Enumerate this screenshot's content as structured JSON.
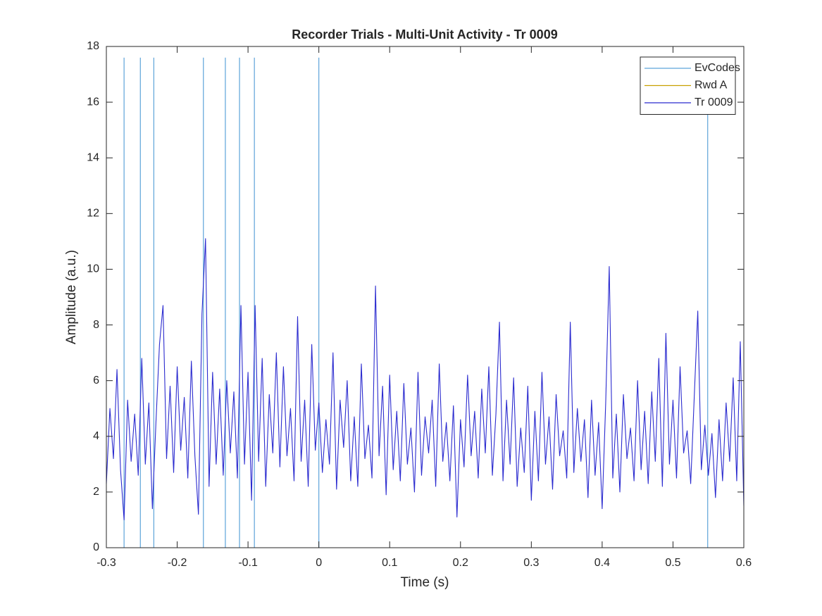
{
  "chart_data": {
    "type": "line",
    "title": "Recorder Trials - Multi-Unit Activity - Tr 0009",
    "x_label": "Time (s)",
    "y_label": "Amplitude (a.u.)",
    "xlim": [
      -0.3,
      0.6
    ],
    "ylim": [
      0,
      18
    ],
    "xticks": [
      -0.3,
      -0.2,
      -0.1,
      0,
      0.1,
      0.2,
      0.3,
      0.4,
      0.5,
      0.6
    ],
    "yticks": [
      0,
      2,
      4,
      6,
      8,
      10,
      12,
      14,
      16,
      18
    ],
    "legend": "northeast",
    "series": [
      {
        "name": "EvCodes",
        "color": "#5da3d9",
        "marker": "vline",
        "x": [
          -0.275,
          -0.252,
          -0.233,
          -0.163,
          -0.132,
          -0.112,
          -0.091,
          0,
          0.549
        ],
        "values": [
          17.6,
          17.6,
          17.6,
          17.6,
          17.6,
          17.6,
          17.6,
          17.6,
          17.6
        ]
      },
      {
        "name": "Rwd A",
        "color": "#c9a000",
        "x": [],
        "values": []
      },
      {
        "name": "Tr 0009",
        "color": "#2b2bcf",
        "x": [
          -0.3,
          -0.295,
          -0.29,
          -0.285,
          -0.28,
          -0.275,
          -0.27,
          -0.265,
          -0.26,
          -0.255,
          -0.25,
          -0.245,
          -0.24,
          -0.235,
          -0.23,
          -0.225,
          -0.22,
          -0.215,
          -0.21,
          -0.205,
          -0.2,
          -0.195,
          -0.19,
          -0.185,
          -0.18,
          -0.175,
          -0.17,
          -0.165,
          -0.16,
          -0.155,
          -0.15,
          -0.145,
          -0.14,
          -0.135,
          -0.13,
          -0.125,
          -0.12,
          -0.115,
          -0.11,
          -0.105,
          -0.1,
          -0.095,
          -0.09,
          -0.085,
          -0.08,
          -0.075,
          -0.07,
          -0.065,
          -0.06,
          -0.055,
          -0.05,
          -0.045,
          -0.04,
          -0.035,
          -0.03,
          -0.025,
          -0.02,
          -0.015,
          -0.01,
          -0.005,
          0,
          0.005,
          0.01,
          0.015,
          0.02,
          0.025,
          0.03,
          0.035,
          0.04,
          0.045,
          0.05,
          0.055,
          0.06,
          0.065,
          0.07,
          0.075,
          0.08,
          0.085,
          0.09,
          0.095,
          0.1,
          0.105,
          0.11,
          0.115,
          0.12,
          0.125,
          0.13,
          0.135,
          0.14,
          0.145,
          0.15,
          0.155,
          0.16,
          0.165,
          0.17,
          0.175,
          0.18,
          0.185,
          0.19,
          0.195,
          0.2,
          0.205,
          0.21,
          0.215,
          0.22,
          0.225,
          0.23,
          0.235,
          0.24,
          0.245,
          0.25,
          0.255,
          0.26,
          0.265,
          0.27,
          0.275,
          0.28,
          0.285,
          0.29,
          0.295,
          0.3,
          0.305,
          0.31,
          0.315,
          0.32,
          0.325,
          0.33,
          0.335,
          0.34,
          0.345,
          0.35,
          0.355,
          0.36,
          0.365,
          0.37,
          0.375,
          0.38,
          0.385,
          0.39,
          0.395,
          0.4,
          0.405,
          0.41,
          0.415,
          0.42,
          0.425,
          0.43,
          0.435,
          0.44,
          0.445,
          0.45,
          0.455,
          0.46,
          0.465,
          0.47,
          0.475,
          0.48,
          0.485,
          0.49,
          0.495,
          0.5,
          0.505,
          0.51,
          0.515,
          0.52,
          0.525,
          0.53,
          0.535,
          0.54,
          0.545,
          0.55,
          0.555,
          0.56,
          0.565,
          0.57,
          0.575,
          0.58,
          0.585,
          0.59,
          0.595,
          0.6
        ],
        "values": [
          2.3,
          5.0,
          3.2,
          6.4,
          2.8,
          1.0,
          5.3,
          3.1,
          4.8,
          2.6,
          6.8,
          3.0,
          5.2,
          1.4,
          4.5,
          7.3,
          8.7,
          3.2,
          5.8,
          2.7,
          6.5,
          3.5,
          5.4,
          2.5,
          6.7,
          3.3,
          1.2,
          8.4,
          11.1,
          2.2,
          6.3,
          3.0,
          5.7,
          2.6,
          6.0,
          3.4,
          5.6,
          2.5,
          8.7,
          3.0,
          6.3,
          1.7,
          8.7,
          3.1,
          6.8,
          2.2,
          5.5,
          3.4,
          7.0,
          2.9,
          6.5,
          3.3,
          5.0,
          2.4,
          8.3,
          3.1,
          5.3,
          2.2,
          7.3,
          3.5,
          5.2,
          2.7,
          4.6,
          3.0,
          7.0,
          2.1,
          5.3,
          3.6,
          6.0,
          2.4,
          4.7,
          2.2,
          6.6,
          3.2,
          4.4,
          2.5,
          9.4,
          3.3,
          5.8,
          1.9,
          6.2,
          2.8,
          4.9,
          2.4,
          5.9,
          3.0,
          4.3,
          2.0,
          6.3,
          2.6,
          4.7,
          3.4,
          5.3,
          2.2,
          6.6,
          3.1,
          4.5,
          2.4,
          5.1,
          1.1,
          4.6,
          2.9,
          6.2,
          3.3,
          4.9,
          2.5,
          5.7,
          3.4,
          6.5,
          2.6,
          4.8,
          8.1,
          2.4,
          5.3,
          3.0,
          6.1,
          2.2,
          4.3,
          2.7,
          5.8,
          1.7,
          4.9,
          2.4,
          6.3,
          3.0,
          4.7,
          2.1,
          5.5,
          3.3,
          4.2,
          2.5,
          8.1,
          2.7,
          5.0,
          3.1,
          4.6,
          1.8,
          5.3,
          2.6,
          4.5,
          1.4,
          5.2,
          10.1,
          2.5,
          4.8,
          2.0,
          5.5,
          3.2,
          4.3,
          2.4,
          6.0,
          2.8,
          4.9,
          2.3,
          5.6,
          3.1,
          6.8,
          2.2,
          7.7,
          3.0,
          5.3,
          2.5,
          6.5,
          3.4,
          4.2,
          2.3,
          5.4,
          8.5,
          2.8,
          4.4,
          2.6,
          4.1,
          1.8,
          4.6,
          2.4,
          5.2,
          3.1,
          6.1,
          2.4,
          7.4,
          1.5
        ]
      }
    ]
  }
}
